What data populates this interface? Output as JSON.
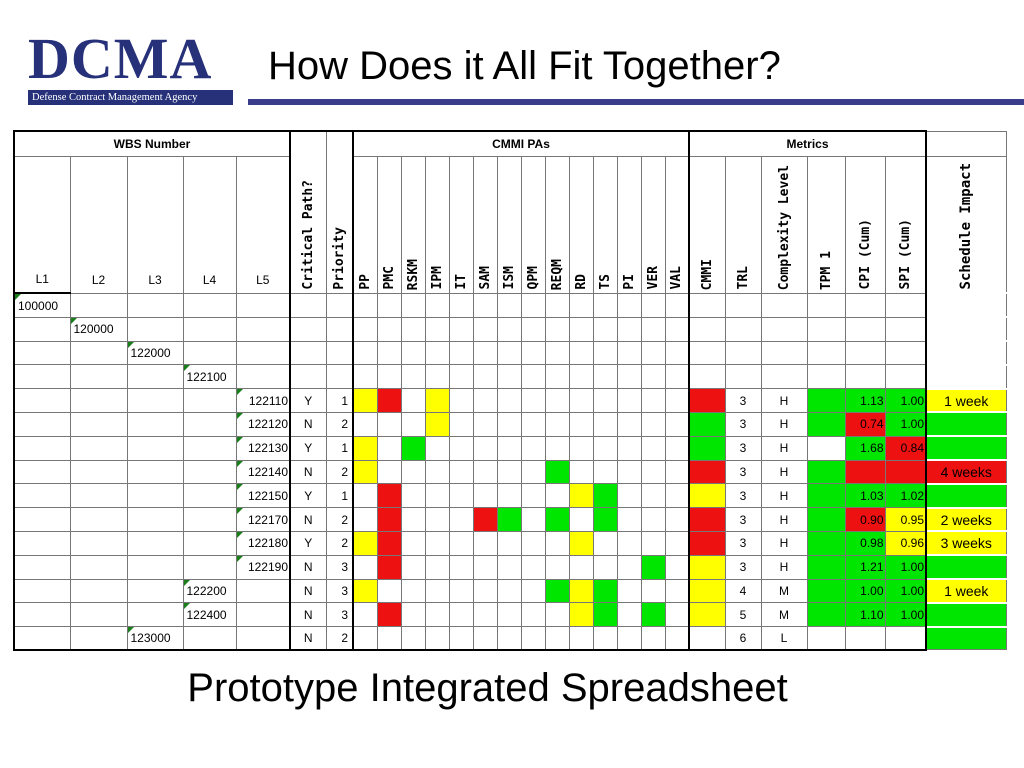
{
  "logo": {
    "word": "DCMA",
    "agency": "Defense Contract Management Agency"
  },
  "title": "How Does it All Fit Together?",
  "subtitle": "Prototype Integrated Spreadsheet",
  "colors": {
    "red": "#ee1111",
    "yellow": "#ffff00",
    "green": "#00e600",
    "none": "#ffffff",
    "brand": "#26317a"
  },
  "table": {
    "groups": {
      "wbs": "WBS Number",
      "cmmi": "CMMI PAs",
      "metrics": "Metrics"
    },
    "levels": [
      "L1",
      "L2",
      "L3",
      "L4",
      "L5"
    ],
    "critical_path_header": "Critical Path?",
    "priority_header": "Priority",
    "cmmi_pas": [
      "PP",
      "PMC",
      "RSKM",
      "IPM",
      "IT",
      "SAM",
      "ISM",
      "QPM",
      "REQM",
      "RD",
      "TS",
      "PI",
      "VER",
      "VAL"
    ],
    "metrics_headers": [
      "CMMI",
      "TRL",
      "Complexity Level",
      "TPM 1",
      "CPI (Cum)",
      "SPI (Cum)"
    ],
    "schedule_header": "Schedule Impact",
    "rows": [
      {
        "level": 1,
        "wbs": "100000",
        "cp": "",
        "pri": "",
        "pas": [
          "",
          "",
          "",
          "",
          "",
          "",
          "",
          "",
          "",
          "",
          "",
          "",
          "",
          ""
        ],
        "cmmi": "",
        "trl": "",
        "cx": "",
        "tpm": "",
        "cpi": "",
        "cpi_c": "",
        "spi": "",
        "spi_c": "",
        "sched": "",
        "sched_c": ""
      },
      {
        "level": 2,
        "wbs": "120000",
        "cp": "",
        "pri": "",
        "pas": [
          "",
          "",
          "",
          "",
          "",
          "",
          "",
          "",
          "",
          "",
          "",
          "",
          "",
          ""
        ],
        "cmmi": "",
        "trl": "",
        "cx": "",
        "tpm": "",
        "cpi": "",
        "cpi_c": "",
        "spi": "",
        "spi_c": "",
        "sched": "",
        "sched_c": ""
      },
      {
        "level": 3,
        "wbs": "122000",
        "cp": "",
        "pri": "",
        "pas": [
          "",
          "",
          "",
          "",
          "",
          "",
          "",
          "",
          "",
          "",
          "",
          "",
          "",
          ""
        ],
        "cmmi": "",
        "trl": "",
        "cx": "",
        "tpm": "",
        "cpi": "",
        "cpi_c": "",
        "spi": "",
        "spi_c": "",
        "sched": "",
        "sched_c": ""
      },
      {
        "level": 4,
        "wbs": "122100",
        "cp": "",
        "pri": "",
        "pas": [
          "",
          "",
          "",
          "",
          "",
          "",
          "",
          "",
          "",
          "",
          "",
          "",
          "",
          ""
        ],
        "cmmi": "",
        "trl": "",
        "cx": "",
        "tpm": "",
        "cpi": "",
        "cpi_c": "",
        "spi": "",
        "spi_c": "",
        "sched": "",
        "sched_c": ""
      },
      {
        "level": 5,
        "wbs": "122110",
        "cp": "Y",
        "pri": "1",
        "pas": [
          "yellow",
          "red",
          "",
          "yellow",
          "",
          "",
          "",
          "",
          "",
          "",
          "",
          "",
          "",
          ""
        ],
        "cmmi": "red",
        "trl": "3",
        "cx": "H",
        "tpm": "green",
        "cpi": "1.13",
        "cpi_c": "green",
        "spi": "1.00",
        "spi_c": "green",
        "sched": "1 week",
        "sched_c": "yellow"
      },
      {
        "level": 5,
        "wbs": "122120",
        "cp": "N",
        "pri": "2",
        "pas": [
          "",
          "",
          "",
          "yellow",
          "",
          "",
          "",
          "",
          "",
          "",
          "",
          "",
          "",
          ""
        ],
        "cmmi": "green",
        "trl": "3",
        "cx": "H",
        "tpm": "green",
        "cpi": "0.74",
        "cpi_c": "red",
        "spi": "1.00",
        "spi_c": "green",
        "sched": "",
        "sched_c": "green"
      },
      {
        "level": 5,
        "wbs": "122130",
        "cp": "Y",
        "pri": "1",
        "pas": [
          "yellow",
          "",
          "green",
          "",
          "",
          "",
          "",
          "",
          "",
          "",
          "",
          "",
          "",
          ""
        ],
        "cmmi": "green",
        "trl": "3",
        "cx": "H",
        "tpm": "",
        "cpi": "1.68",
        "cpi_c": "green",
        "spi": "0.84",
        "spi_c": "red",
        "sched": "",
        "sched_c": "green"
      },
      {
        "level": 5,
        "wbs": "122140",
        "cp": "N",
        "pri": "2",
        "pas": [
          "yellow",
          "",
          "",
          "",
          "",
          "",
          "",
          "",
          "green",
          "",
          "",
          "",
          "",
          ""
        ],
        "cmmi": "red",
        "trl": "3",
        "cx": "H",
        "tpm": "green",
        "cpi": "",
        "cpi_c": "red",
        "spi": "",
        "spi_c": "red",
        "sched": "4 weeks",
        "sched_c": "red"
      },
      {
        "level": 5,
        "wbs": "122150",
        "cp": "Y",
        "pri": "1",
        "pas": [
          "",
          "red",
          "",
          "",
          "",
          "",
          "",
          "",
          "",
          "yellow",
          "green",
          "",
          "",
          ""
        ],
        "cmmi": "yellow",
        "trl": "3",
        "cx": "H",
        "tpm": "green",
        "cpi": "1.03",
        "cpi_c": "green",
        "spi": "1.02",
        "spi_c": "green",
        "sched": "",
        "sched_c": "green"
      },
      {
        "level": 5,
        "wbs": "122170",
        "cp": "N",
        "pri": "2",
        "pas": [
          "",
          "red",
          "",
          "",
          "",
          "red",
          "green",
          "",
          "green",
          "",
          "green",
          "",
          "",
          ""
        ],
        "cmmi": "red",
        "trl": "3",
        "cx": "H",
        "tpm": "green",
        "cpi": "0.90",
        "cpi_c": "red",
        "spi": "0.95",
        "spi_c": "yellow",
        "sched": "2 weeks",
        "sched_c": "yellow"
      },
      {
        "level": 5,
        "wbs": "122180",
        "cp": "Y",
        "pri": "2",
        "pas": [
          "yellow",
          "red",
          "",
          "",
          "",
          "",
          "",
          "",
          "",
          "yellow",
          "",
          "",
          "",
          ""
        ],
        "cmmi": "red",
        "trl": "3",
        "cx": "H",
        "tpm": "green",
        "cpi": "0.98",
        "cpi_c": "green",
        "spi": "0.96",
        "spi_c": "yellow",
        "sched": "3 weeks",
        "sched_c": "yellow"
      },
      {
        "level": 5,
        "wbs": "122190",
        "cp": "N",
        "pri": "3",
        "pas": [
          "",
          "red",
          "",
          "",
          "",
          "",
          "",
          "",
          "",
          "",
          "",
          "",
          "green",
          ""
        ],
        "cmmi": "yellow",
        "trl": "3",
        "cx": "H",
        "tpm": "green",
        "cpi": "1.21",
        "cpi_c": "green",
        "spi": "1.00",
        "spi_c": "green",
        "sched": "",
        "sched_c": "green"
      },
      {
        "level": 4,
        "wbs": "122200",
        "cp": "N",
        "pri": "3",
        "pas": [
          "yellow",
          "",
          "",
          "",
          "",
          "",
          "",
          "",
          "green",
          "yellow",
          "green",
          "",
          "",
          ""
        ],
        "cmmi": "yellow",
        "trl": "4",
        "cx": "M",
        "tpm": "green",
        "cpi": "1.00",
        "cpi_c": "green",
        "spi": "1.00",
        "spi_c": "green",
        "sched": "1 week",
        "sched_c": "yellow"
      },
      {
        "level": 4,
        "wbs": "122400",
        "cp": "N",
        "pri": "3",
        "pas": [
          "",
          "red",
          "",
          "",
          "",
          "",
          "",
          "",
          "",
          "yellow",
          "green",
          "",
          "green",
          ""
        ],
        "cmmi": "yellow",
        "trl": "5",
        "cx": "M",
        "tpm": "green",
        "cpi": "1.10",
        "cpi_c": "green",
        "spi": "1.00",
        "spi_c": "green",
        "sched": "",
        "sched_c": "green"
      },
      {
        "level": 3,
        "wbs": "123000",
        "cp": "N",
        "pri": "2",
        "pas": [
          "",
          "",
          "",
          "",
          "",
          "",
          "",
          "",
          "",
          "",
          "",
          "",
          "",
          ""
        ],
        "cmmi": "",
        "trl": "6",
        "cx": "L",
        "tpm": "",
        "cpi": "",
        "cpi_c": "",
        "spi": "",
        "spi_c": "",
        "sched": "",
        "sched_c": "green"
      }
    ]
  }
}
